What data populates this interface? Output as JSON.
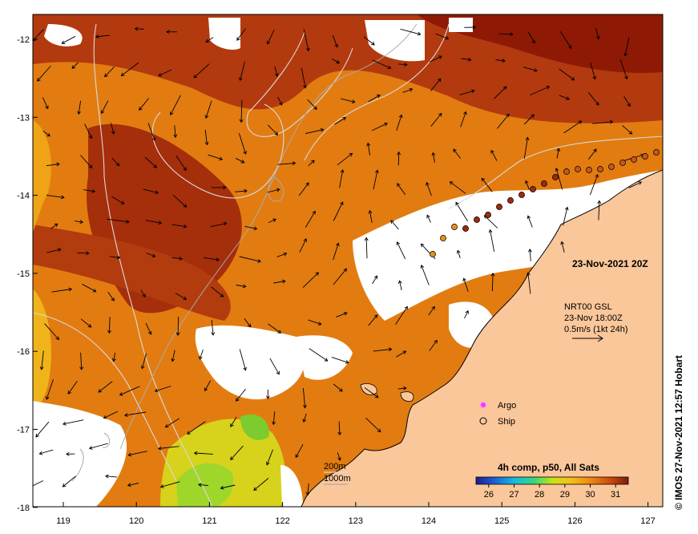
{
  "map": {
    "title_date": "23-Nov-2021 20Z",
    "lon_ticks": [
      "119",
      "120",
      "121",
      "122",
      "123",
      "124",
      "125",
      "126",
      "127"
    ],
    "lat_ticks": [
      "-12",
      "-13",
      "-14",
      "-15",
      "-16",
      "-17",
      "-18"
    ],
    "current_legend": {
      "line1": "NRT00 GSL",
      "line2": "23-Nov 18:00Z",
      "line3": "0.5m/s (1kt 24h)"
    },
    "markers_legend": {
      "argo": "Argo",
      "ship": "Ship"
    },
    "depth_legend": {
      "line1": "200m",
      "line2": "1000m"
    },
    "colorbar": {
      "title": "4h comp, p50, All Sats",
      "ticks": [
        "26",
        "27",
        "28",
        "29",
        "30",
        "31"
      ],
      "min": 25.5,
      "max": 31.5
    },
    "credit": "© IMOS 27-Nov-2021 12:57 Hobart",
    "colors": {
      "land": "#fac79a",
      "warm_sst": "#b5320d",
      "mid_sst": "#e98010",
      "cool_sst": "#dfe21a",
      "argo": "#ff33ff"
    }
  }
}
